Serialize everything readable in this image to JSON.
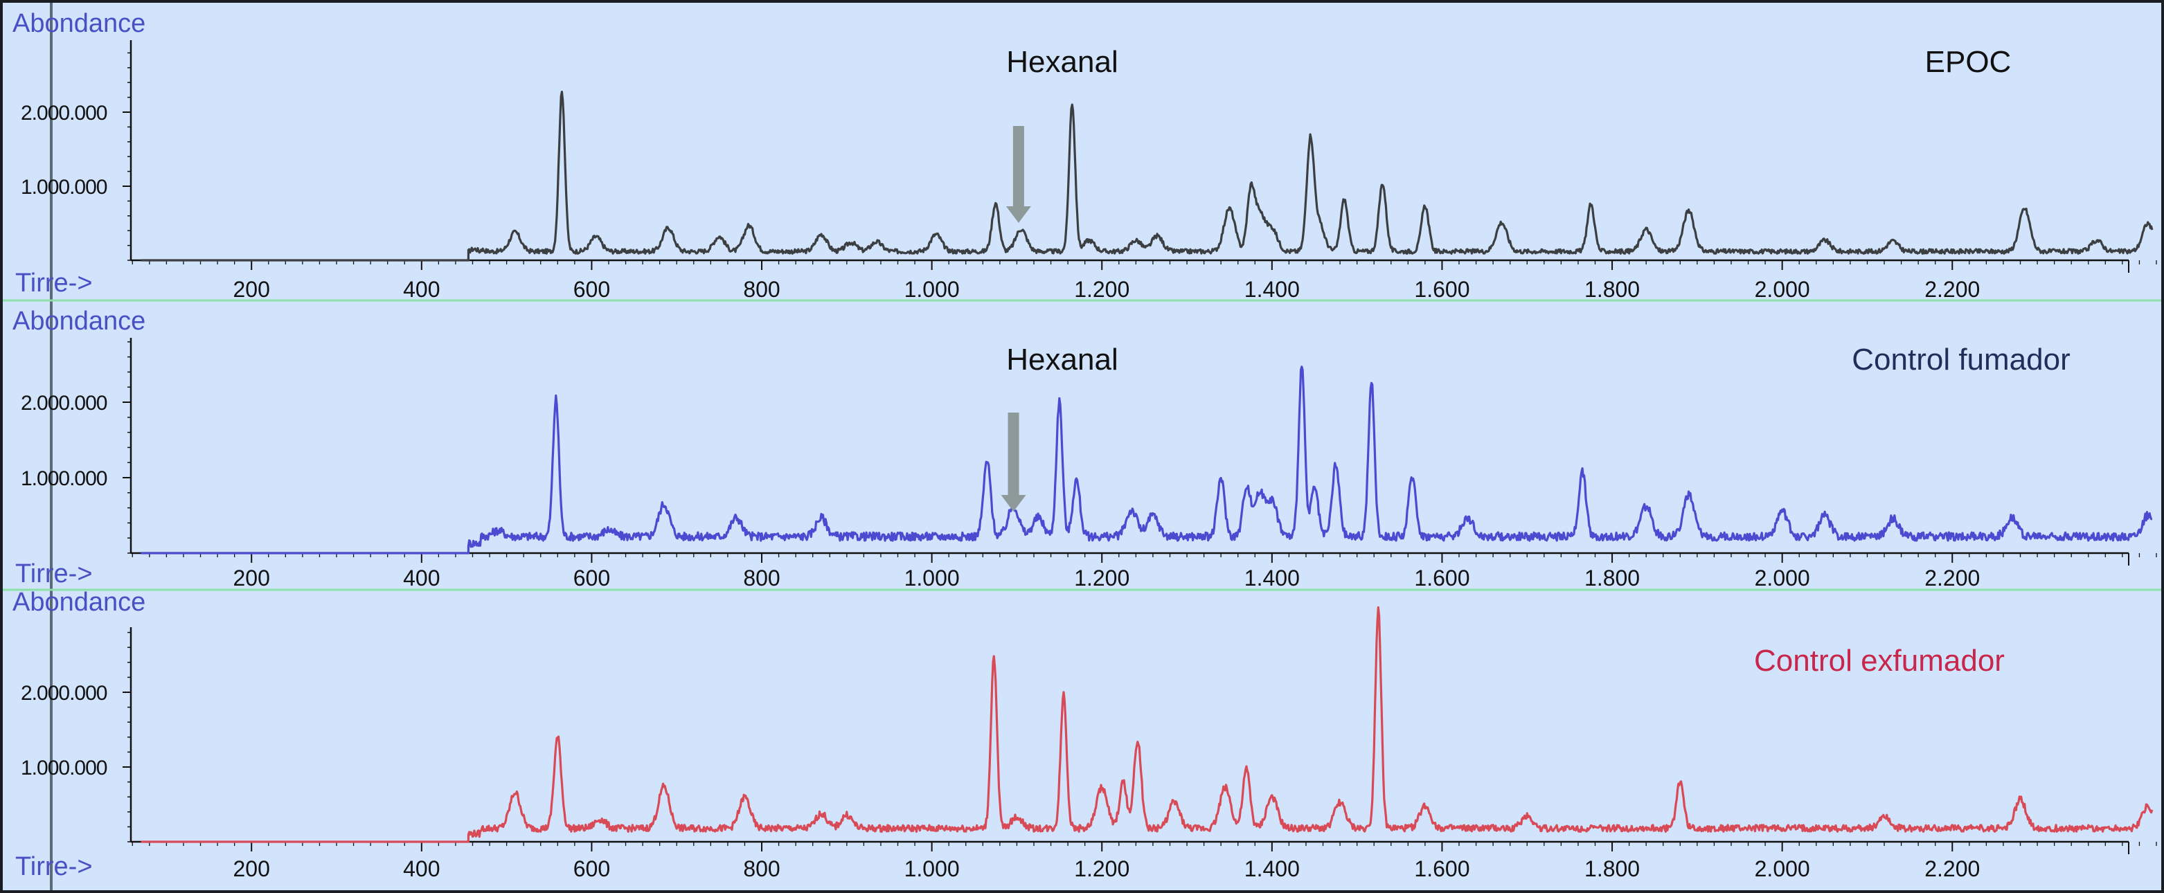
{
  "colors": {
    "background": "#d2e3fc",
    "axis": "#111111",
    "label_blue": "#4a50c4",
    "divider": "#8fe0a8",
    "arrow": "#8e9a9a"
  },
  "chart_data": [
    {
      "type": "line",
      "title": "EPOC",
      "title_color": "#111111",
      "line_color": "#3c3f41",
      "ylabel": "Abondance",
      "xlabel": "Tirre->",
      "xlim": [
        50,
        2440
      ],
      "ylim": [
        0,
        2900000
      ],
      "x_ticks": [
        200,
        400,
        600,
        800,
        1000,
        1200,
        1400,
        1600,
        1800,
        2000,
        2200
      ],
      "x_tick_labels": [
        "200",
        "400",
        "600",
        "800",
        "1.000",
        "1.200",
        "1.400",
        "1.600",
        "1.800",
        "2.000",
        "2.200"
      ],
      "y_ticks": [
        1000000,
        2000000
      ],
      "y_tick_labels": [
        "1.000.000",
        "2.000.000"
      ],
      "annotation": {
        "text": "Hexanal",
        "arrow_x": 1102
      },
      "baseline": 120000,
      "series": [
        {
          "values": [
            [
              462,
              80000
            ],
            [
              510,
              260000
            ],
            [
              565,
              2150000
            ],
            [
              605,
              200000
            ],
            [
              690,
              320000
            ],
            [
              750,
              200000
            ],
            [
              785,
              350000
            ],
            [
              870,
              230000
            ],
            [
              905,
              120000
            ],
            [
              935,
              130000
            ],
            [
              1005,
              230000
            ],
            [
              1075,
              650000
            ],
            [
              1105,
              300000
            ],
            [
              1165,
              2000000
            ],
            [
              1185,
              150000
            ],
            [
              1240,
              150000
            ],
            [
              1265,
              210000
            ],
            [
              1350,
              580000
            ],
            [
              1375,
              750000
            ],
            [
              1385,
              510000
            ],
            [
              1400,
              300000
            ],
            [
              1445,
              1450000
            ],
            [
              1455,
              380000
            ],
            [
              1485,
              700000
            ],
            [
              1530,
              920000
            ],
            [
              1580,
              620000
            ],
            [
              1670,
              390000
            ],
            [
              1775,
              640000
            ],
            [
              1840,
              300000
            ],
            [
              1890,
              550000
            ],
            [
              2050,
              150000
            ],
            [
              2130,
              140000
            ],
            [
              2285,
              580000
            ],
            [
              2370,
              150000
            ],
            [
              2430,
              380000
            ]
          ]
        }
      ]
    },
    {
      "type": "line",
      "title": "Control fumador",
      "title_color": "#1f2f5a",
      "line_color": "#4b4ad0",
      "ylabel": "Abondance",
      "xlabel": "Tirre->",
      "xlim": [
        50,
        2440
      ],
      "ylim": [
        0,
        2900000
      ],
      "x_ticks": [
        200,
        400,
        600,
        800,
        1000,
        1200,
        1400,
        1600,
        1800,
        2000,
        2200
      ],
      "x_tick_labels": [
        "200",
        "400",
        "600",
        "800",
        "1.000",
        "1.200",
        "1.400",
        "1.600",
        "1.800",
        "2.000",
        "2.200"
      ],
      "y_ticks": [
        1000000,
        2000000
      ],
      "y_tick_labels": [
        "1.000.000",
        "2.000.000"
      ],
      "annotation": {
        "text": "Hexanal",
        "arrow_x": 1096
      },
      "baseline": 220000,
      "series": [
        {
          "values": [
            [
              490,
              80000
            ],
            [
              558,
              1820000
            ],
            [
              620,
              90000
            ],
            [
              685,
              430000
            ],
            [
              770,
              250000
            ],
            [
              870,
              250000
            ],
            [
              1065,
              1000000
            ],
            [
              1096,
              400000
            ],
            [
              1125,
              250000
            ],
            [
              1150,
              1800000
            ],
            [
              1170,
              750000
            ],
            [
              1235,
              350000
            ],
            [
              1260,
              280000
            ],
            [
              1340,
              780000
            ],
            [
              1370,
              650000
            ],
            [
              1385,
              550000
            ],
            [
              1400,
              450000
            ],
            [
              1435,
              2270000
            ],
            [
              1450,
              650000
            ],
            [
              1475,
              950000
            ],
            [
              1517,
              2040000
            ],
            [
              1565,
              800000
            ],
            [
              1630,
              250000
            ],
            [
              1765,
              860000
            ],
            [
              1840,
              400000
            ],
            [
              1890,
              550000
            ],
            [
              2000,
              330000
            ],
            [
              2050,
              280000
            ],
            [
              2130,
              240000
            ],
            [
              2270,
              260000
            ],
            [
              2430,
              280000
            ]
          ]
        }
      ]
    },
    {
      "type": "line",
      "title": "Control exfumador",
      "title_color": "#c8264a",
      "line_color": "#d84a55",
      "ylabel": "Abondance",
      "xlabel": "Tirre->",
      "xlim": [
        50,
        2440
      ],
      "ylim": [
        0,
        2900000
      ],
      "x_ticks": [
        200,
        400,
        600,
        800,
        1000,
        1200,
        1400,
        1600,
        1800,
        2000,
        2200
      ],
      "x_tick_labels": [
        "200",
        "400",
        "600",
        "800",
        "1.000",
        "1.200",
        "1.400",
        "1.600",
        "1.800",
        "2.000",
        "2.200"
      ],
      "y_ticks": [
        1000000,
        2000000
      ],
      "y_tick_labels": [
        "1.000.000",
        "2.000.000"
      ],
      "baseline": 180000,
      "series": [
        {
          "values": [
            [
              510,
              480000
            ],
            [
              560,
              1220000
            ],
            [
              610,
              120000
            ],
            [
              685,
              560000
            ],
            [
              780,
              420000
            ],
            [
              870,
              200000
            ],
            [
              900,
              180000
            ],
            [
              1073,
              2300000
            ],
            [
              1100,
              150000
            ],
            [
              1155,
              1800000
            ],
            [
              1200,
              550000
            ],
            [
              1225,
              620000
            ],
            [
              1242,
              1180000
            ],
            [
              1285,
              350000
            ],
            [
              1345,
              550000
            ],
            [
              1370,
              790000
            ],
            [
              1400,
              420000
            ],
            [
              1480,
              350000
            ],
            [
              1525,
              2930000
            ],
            [
              1580,
              300000
            ],
            [
              1700,
              170000
            ],
            [
              1880,
              630000
            ],
            [
              2120,
              170000
            ],
            [
              2280,
              390000
            ],
            [
              2430,
              300000
            ]
          ]
        }
      ]
    }
  ]
}
